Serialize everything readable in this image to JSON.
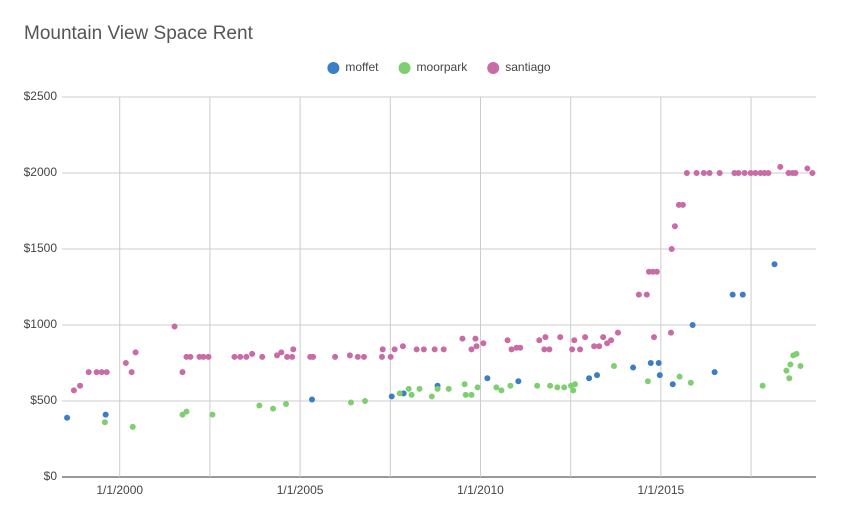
{
  "chart_data": {
    "type": "scatter",
    "title": "Mountain View Space Rent",
    "xlim": [
      1998.4,
      2019.3
    ],
    "ylim": [
      0,
      2500
    ],
    "xticks": [
      {
        "value": 2000,
        "label": "1/1/2000"
      },
      {
        "value": 2005,
        "label": "1/1/2005"
      },
      {
        "value": 2010,
        "label": "1/1/2010"
      },
      {
        "value": 2015,
        "label": "1/1/2015"
      }
    ],
    "x_gridlines": [
      2002.5,
      2007.5,
      2012.5,
      2017.5
    ],
    "yticks": [
      {
        "value": 0,
        "label": "$0"
      },
      {
        "value": 500,
        "label": "$500"
      },
      {
        "value": 1000,
        "label": "$1000"
      },
      {
        "value": 1500,
        "label": "$1500"
      },
      {
        "value": 2000,
        "label": "$2000"
      },
      {
        "value": 2500,
        "label": "$2500"
      }
    ],
    "grid": true,
    "legend": "top",
    "series": [
      {
        "name": "moffet",
        "color": "#3b7dc6",
        "x": [
          1998.54,
          1999.61,
          2005.33,
          2007.54,
          2007.87,
          2008.81,
          2010.19,
          2011.05,
          2013.01,
          2013.23,
          2014.23,
          2014.72,
          2014.94,
          2014.97,
          2015.33,
          2015.88,
          2016.49,
          2016.99,
          2017.27,
          2018.15
        ],
        "values": [
          390,
          410,
          510,
          530,
          550,
          600,
          650,
          630,
          650,
          670,
          720,
          750,
          750,
          670,
          610,
          1000,
          690,
          1200,
          1200,
          1400
        ]
      },
      {
        "name": "moorpark",
        "color": "#7fcf72",
        "x": [
          1999.59,
          2000.36,
          2001.74,
          2001.85,
          2002.57,
          2003.87,
          2004.25,
          2004.61,
          2006.41,
          2006.8,
          2007.76,
          2008.01,
          2008.09,
          2008.31,
          2008.65,
          2008.81,
          2009.12,
          2009.56,
          2009.59,
          2009.75,
          2009.92,
          2010.44,
          2010.58,
          2010.83,
          2011.57,
          2011.93,
          2012.13,
          2012.32,
          2012.51,
          2012.57,
          2012.62,
          2013.7,
          2014.64,
          2015.52,
          2015.83,
          2017.82,
          2018.48,
          2018.56,
          2018.59,
          2018.67,
          2018.76,
          2018.87
        ],
        "values": [
          360,
          330,
          410,
          430,
          410,
          470,
          450,
          480,
          490,
          500,
          550,
          580,
          540,
          580,
          530,
          580,
          580,
          610,
          540,
          540,
          590,
          590,
          570,
          600,
          600,
          600,
          590,
          590,
          600,
          570,
          610,
          730,
          630,
          660,
          620,
          600,
          700,
          650,
          740,
          800,
          810,
          730
        ]
      },
      {
        "name": "santiago",
        "color": "#c86ba6",
        "x": [
          1998.73,
          1998.9,
          1999.14,
          1999.36,
          1999.5,
          1999.64,
          2000.17,
          2000.33,
          2000.44,
          2001.52,
          2001.74,
          2001.85,
          2001.96,
          2002.21,
          2002.32,
          2002.46,
          2003.18,
          2003.34,
          2003.51,
          2003.67,
          2003.95,
          2004.36,
          2004.48,
          2004.64,
          2004.78,
          2004.81,
          2005.28,
          2005.36,
          2005.97,
          2006.38,
          2006.6,
          2006.77,
          2007.27,
          2007.29,
          2007.51,
          2007.62,
          2007.85,
          2008.23,
          2008.43,
          2008.73,
          2008.98,
          2009.5,
          2009.75,
          2009.86,
          2009.89,
          2010.08,
          2010.75,
          2010.86,
          2011.0,
          2011.1,
          2011.63,
          2011.77,
          2011.8,
          2011.91,
          2012.21,
          2012.54,
          2012.6,
          2012.76,
          2012.9,
          2013.15,
          2013.29,
          2013.4,
          2013.51,
          2013.62,
          2013.81,
          2014.39,
          2014.61,
          2014.67,
          2014.78,
          2014.81,
          2014.89,
          2015.28,
          2015.3,
          2015.39,
          2015.5,
          2015.61,
          2015.72,
          2015.99,
          2016.19,
          2016.35,
          2016.63,
          2017.04,
          2017.15,
          2017.32,
          2017.49,
          2017.62,
          2017.76,
          2017.87,
          2017.98,
          2018.31,
          2018.54,
          2018.65,
          2018.73,
          2019.06,
          2019.2
        ],
        "values": [
          570,
          600,
          690,
          690,
          690,
          690,
          750,
          690,
          820,
          990,
          690,
          790,
          790,
          790,
          790,
          790,
          790,
          790,
          790,
          810,
          790,
          800,
          820,
          790,
          790,
          840,
          790,
          790,
          790,
          800,
          790,
          790,
          790,
          840,
          790,
          840,
          860,
          840,
          840,
          840,
          840,
          910,
          840,
          910,
          860,
          880,
          900,
          840,
          850,
          850,
          900,
          840,
          920,
          840,
          920,
          840,
          900,
          840,
          920,
          860,
          860,
          920,
          880,
          900,
          950,
          1200,
          1200,
          1350,
          1350,
          920,
          1350,
          950,
          1500,
          1650,
          1790,
          1790,
          2000,
          2000,
          2000,
          2000,
          2000,
          2000,
          2000,
          2000,
          2000,
          2000,
          2000,
          2000,
          2000,
          2040,
          2000,
          2000,
          2000,
          2030,
          2000
        ]
      }
    ]
  }
}
